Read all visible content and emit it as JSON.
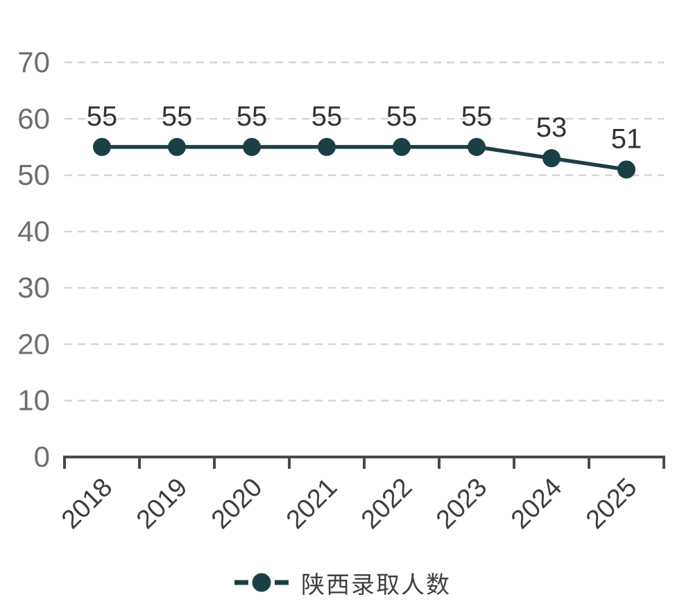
{
  "chart_data": {
    "type": "line",
    "title": "",
    "categories": [
      "2018",
      "2019",
      "2020",
      "2021",
      "2022",
      "2023",
      "2024",
      "2025"
    ],
    "series": [
      {
        "name": "陕西录取人数",
        "values": [
          55,
          55,
          55,
          55,
          55,
          55,
          53,
          51
        ]
      }
    ],
    "xlabel": "",
    "ylabel": "",
    "ylim": [
      0,
      70
    ],
    "yticks": [
      0,
      10,
      20,
      30,
      40,
      50,
      60,
      70
    ],
    "grid": "horizontal-dashed",
    "legend_position": "bottom",
    "point_labels_visible": true,
    "x_tick_style": "band-edges",
    "x_label_rotation_deg": -45
  },
  "colors": {
    "series": "#1a4045",
    "grid": "#d6d6d6",
    "axis": "#4a4a4a",
    "y_tick_label": "#6e6e6e",
    "x_tick_label": "#3d3d3d",
    "point_label": "#323232",
    "legend_text": "#3f3f3f",
    "background": "#ffffff"
  }
}
